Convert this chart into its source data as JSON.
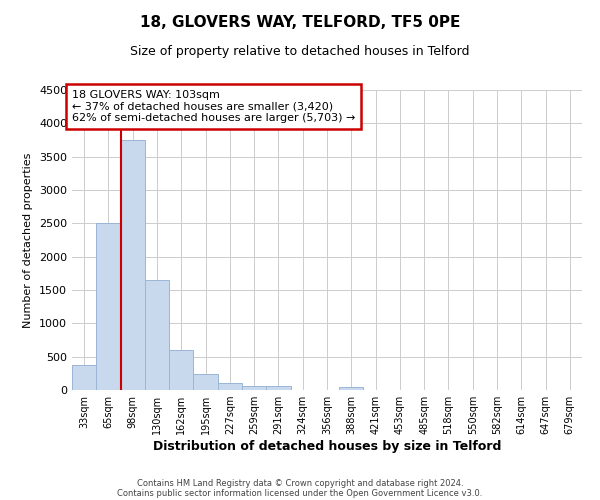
{
  "title": "18, GLOVERS WAY, TELFORD, TF5 0PE",
  "subtitle": "Size of property relative to detached houses in Telford",
  "xlabel": "Distribution of detached houses by size in Telford",
  "ylabel": "Number of detached properties",
  "bar_color": "#c8d8ed",
  "bar_edge_color": "#9ab5d5",
  "vline_color": "#cc0000",
  "categories": [
    "33sqm",
    "65sqm",
    "98sqm",
    "130sqm",
    "162sqm",
    "195sqm",
    "227sqm",
    "259sqm",
    "291sqm",
    "324sqm",
    "356sqm",
    "388sqm",
    "421sqm",
    "453sqm",
    "485sqm",
    "518sqm",
    "550sqm",
    "582sqm",
    "614sqm",
    "647sqm",
    "679sqm"
  ],
  "values": [
    375,
    2500,
    3750,
    1650,
    600,
    240,
    105,
    60,
    60,
    0,
    0,
    50,
    0,
    0,
    0,
    0,
    0,
    0,
    0,
    0,
    0
  ],
  "ylim": [
    0,
    4500
  ],
  "yticks": [
    0,
    500,
    1000,
    1500,
    2000,
    2500,
    3000,
    3500,
    4000,
    4500
  ],
  "annotation_line1": "18 GLOVERS WAY: 103sqm",
  "annotation_line2": "← 37% of detached houses are smaller (3,420)",
  "annotation_line3": "62% of semi-detached houses are larger (5,703) →",
  "footer_line1": "Contains HM Land Registry data © Crown copyright and database right 2024.",
  "footer_line2": "Contains public sector information licensed under the Open Government Licence v3.0.",
  "background_color": "#ffffff",
  "grid_color": "#cccccc",
  "vline_xindex": 2
}
